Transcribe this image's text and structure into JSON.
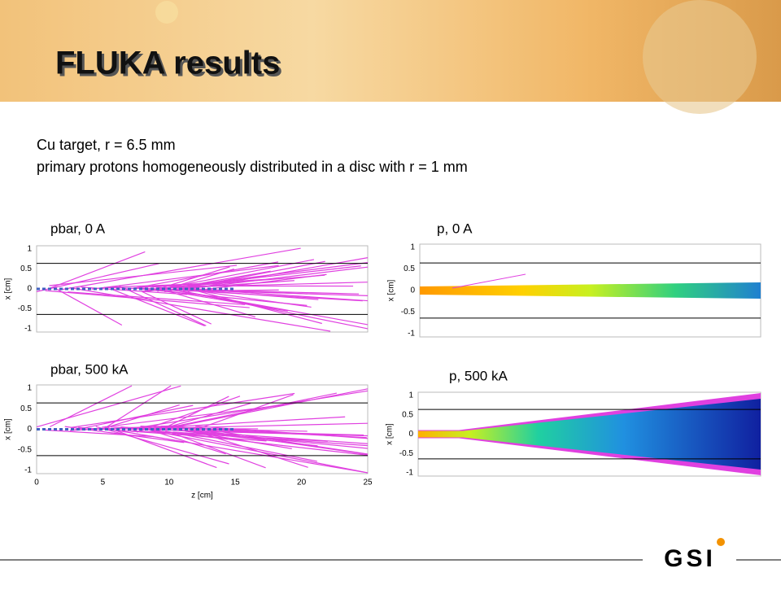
{
  "header": {
    "title": "FLUKA results"
  },
  "description": [
    "Cu target, r = 6.5 mm",
    "primary protons homogeneously distributed in a disc with r = 1 mm"
  ],
  "panels": [
    {
      "label": "pbar, 0 A",
      "y_axis_label": "x [cm]",
      "y_ticks": [
        "1",
        "0.5",
        "0",
        "-0.5",
        "-1"
      ]
    },
    {
      "label": "p, 0 A",
      "y_axis_label": "x [cm]",
      "y_ticks": [
        "1",
        "0.5",
        "0",
        "-0.5",
        "-1"
      ]
    },
    {
      "label": "pbar, 500 kA",
      "y_axis_label": "x [cm]",
      "y_ticks": [
        "1",
        "0.5",
        "0",
        "-0.5",
        "-1"
      ]
    },
    {
      "label": "p, 500 kA",
      "y_axis_label": "x [cm]",
      "y_ticks": [
        "1",
        "0.5",
        "0",
        "-0.5",
        "-1"
      ]
    }
  ],
  "x_axis": {
    "label": "z [cm]",
    "ticks": [
      "0",
      "5",
      "10",
      "15",
      "20",
      "25"
    ]
  },
  "footer": {
    "logo": "GSI"
  }
}
